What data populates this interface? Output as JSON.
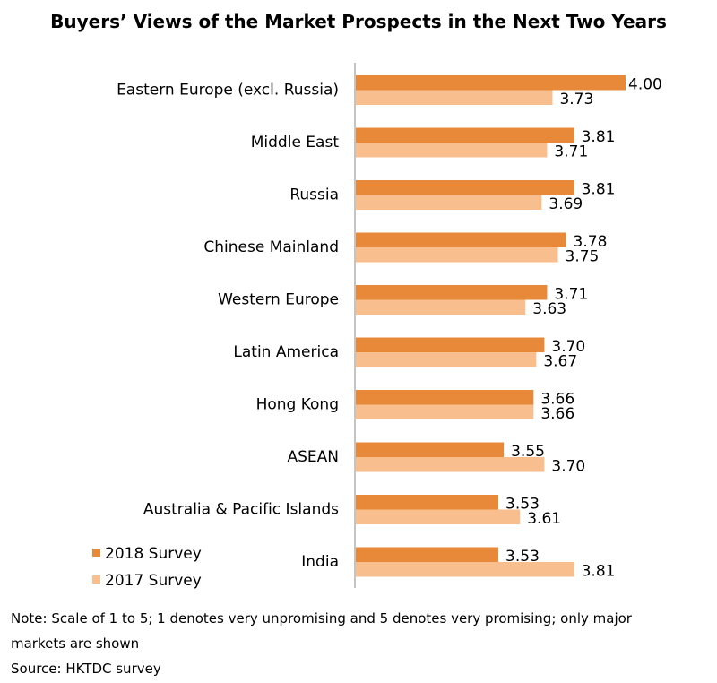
{
  "title": "Buyers’ Views of the Market Prospects in the Next Two Years",
  "chart_data": {
    "type": "bar",
    "orientation": "horizontal",
    "categories": [
      "Eastern Europe (excl. Russia)",
      "Middle East",
      "Russia",
      "Chinese Mainland",
      "Western Europe",
      "Latin America",
      "Hong Kong",
      "ASEAN",
      "Australia & Pacific Islands",
      "India"
    ],
    "series": [
      {
        "name": "2018 Survey",
        "color": "#E8893A",
        "values": [
          4.0,
          3.81,
          3.81,
          3.78,
          3.71,
          3.7,
          3.66,
          3.55,
          3.53,
          3.53
        ],
        "labels": [
          "4.00",
          "3.81",
          "3.81",
          "3.78",
          "3.71",
          "3.70",
          "3.66",
          "3.55",
          "3.53",
          "3.53"
        ]
      },
      {
        "name": "2017 Survey",
        "color": "#F9BE8E",
        "values": [
          3.73,
          3.71,
          3.69,
          3.75,
          3.63,
          3.67,
          3.66,
          3.7,
          3.61,
          3.81
        ],
        "labels": [
          "3.73",
          "3.71",
          "3.69",
          "3.75",
          "3.63",
          "3.67",
          "3.66",
          "3.70",
          "3.61",
          "3.81"
        ]
      }
    ],
    "legend_position": "bottom-left",
    "gridlines": false
  },
  "notes": {
    "line1": "Note: Scale of 1 to 5; 1 denotes very unpromising and 5 denotes very promising; only major",
    "line2": "markets are shown",
    "source": "Source: HKTDC survey"
  }
}
